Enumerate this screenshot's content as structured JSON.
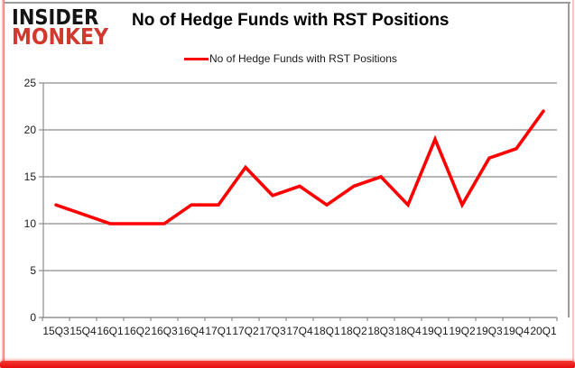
{
  "logo": {
    "line1": "INSIDER",
    "line2": "MONKEY"
  },
  "header": {
    "title": "No of Hedge Funds with RST Positions"
  },
  "legend": {
    "label": "No of Hedge Funds with RST Positions"
  },
  "chart_data": {
    "type": "line",
    "title": "No of Hedge Funds with RST Positions",
    "categories": [
      "15Q3",
      "15Q4",
      "16Q1",
      "16Q2",
      "16Q3",
      "16Q4",
      "17Q1",
      "17Q2",
      "17Q3",
      "17Q4",
      "18Q1",
      "18Q2",
      "18Q3",
      "18Q4",
      "19Q1",
      "19Q2",
      "19Q3",
      "19Q4",
      "20Q1"
    ],
    "series": [
      {
        "name": "No of Hedge Funds with RST Positions",
        "values": [
          12,
          11,
          10,
          10,
          10,
          12,
          12,
          16,
          13,
          14,
          12,
          14,
          15,
          12,
          19,
          12,
          17,
          18,
          22
        ],
        "color": "#ff0000"
      }
    ],
    "xlabel": "",
    "ylabel": "",
    "ylim": [
      0,
      25
    ],
    "yticks": [
      0,
      5,
      10,
      15,
      20,
      25
    ],
    "grid": "horizontal",
    "legend_position": "top-center"
  },
  "colors": {
    "line": "#ff0000",
    "grid": "#8c8c8c",
    "axis": "#8c8c8c",
    "axis_text": "#1a1a1a",
    "logo_red": "#d0392e",
    "frame_red": "#e8120f",
    "chart_border": "#9b9b9b"
  }
}
